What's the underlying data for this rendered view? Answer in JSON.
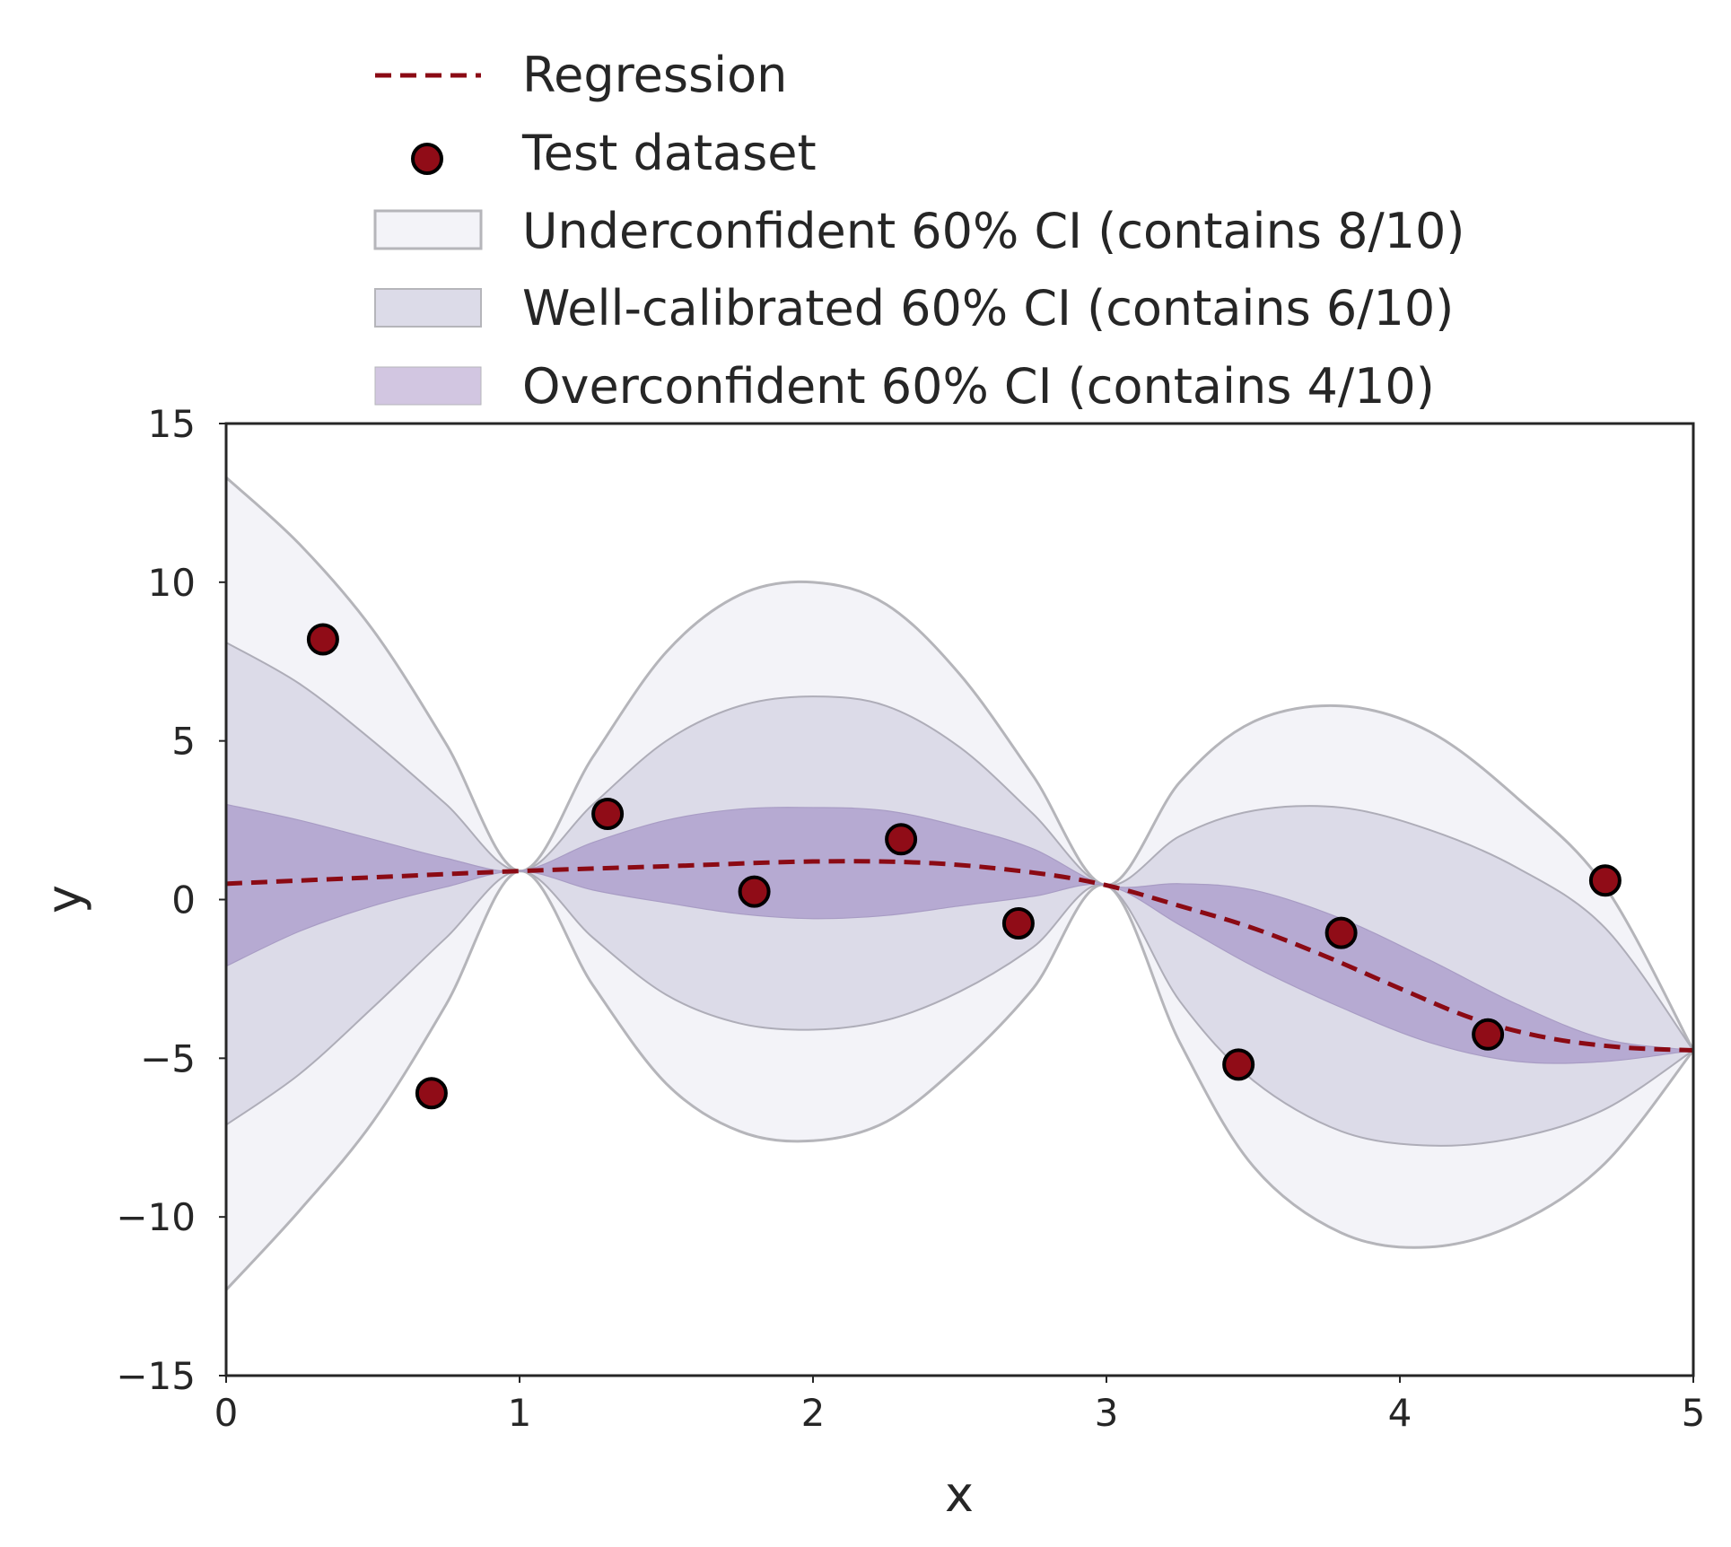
{
  "chart_data": {
    "type": "line",
    "xlabel": "x",
    "ylabel": "y",
    "xlim": [
      0,
      5
    ],
    "ylim": [
      -15,
      15
    ],
    "x_ticks": [
      0,
      1,
      2,
      3,
      4,
      5
    ],
    "y_ticks": [
      15,
      10,
      5,
      0,
      -5,
      -10,
      -15
    ],
    "x_tick_labels": [
      "0",
      "1",
      "2",
      "3",
      "4",
      "5"
    ],
    "y_tick_labels": [
      "15",
      "10",
      "5",
      "0",
      "−5",
      "−10",
      "−15"
    ],
    "grid": false,
    "legend_position": "top",
    "legend": [
      {
        "key": "regression",
        "label": "Regression"
      },
      {
        "key": "test",
        "label": "Test dataset"
      },
      {
        "key": "under",
        "label": "Underconfident 60% CI (contains 8/10)"
      },
      {
        "key": "well",
        "label": "Well-calibrated 60% CI (contains 6/10)"
      },
      {
        "key": "over",
        "label": "Overconfident 60% CI (contains 4/10)"
      }
    ],
    "colors": {
      "regression": "#8b0a14",
      "point_fill": "#900c17",
      "point_edge": "#000000",
      "under_fill": "#f3f3f8",
      "well_fill": "#dcdbe8",
      "over_fill": "#b6aad2",
      "band_edge": "#b5b5ba",
      "axis": "#262626"
    },
    "series": [
      {
        "name": "Regression",
        "x": [
          0,
          0.5,
          1,
          1.5,
          2,
          2.4,
          2.75,
          3,
          3.25,
          3.5,
          3.75,
          4,
          4.25,
          4.5,
          4.75,
          5
        ],
        "values": [
          0.5,
          0.7,
          0.9,
          1.05,
          1.2,
          1.15,
          0.85,
          0.45,
          -0.2,
          -0.9,
          -1.8,
          -2.8,
          -3.75,
          -4.35,
          -4.65,
          -4.75
        ]
      },
      {
        "name": "Underconfident 60% CI (contains 8/10)",
        "x": [
          0,
          0.25,
          0.5,
          0.75,
          1,
          1.25,
          1.5,
          1.75,
          2,
          2.25,
          2.5,
          2.75,
          3,
          3.25,
          3.5,
          3.8,
          4.1,
          4.4,
          4.7,
          5
        ],
        "upper": [
          13.3,
          11.2,
          8.5,
          4.9,
          0.9,
          4.5,
          7.8,
          9.6,
          10,
          9.3,
          7.1,
          3.9,
          0.45,
          3.7,
          5.6,
          6.1,
          5.3,
          3.2,
          0.4,
          -4.75
        ],
        "lower": [
          -12.3,
          -9.8,
          -7.0,
          -3.3,
          0.9,
          -2.7,
          -5.8,
          -7.3,
          -7.6,
          -7.0,
          -5.2,
          -2.8,
          0.45,
          -4.5,
          -8.4,
          -10.5,
          -10.95,
          -10.2,
          -8.3,
          -4.75
        ]
      },
      {
        "name": "Well-calibrated 60% CI (contains 6/10)",
        "x": [
          0,
          0.25,
          0.5,
          0.75,
          1,
          1.25,
          1.5,
          1.75,
          2,
          2.25,
          2.5,
          2.75,
          3,
          3.25,
          3.5,
          3.8,
          4.1,
          4.4,
          4.7,
          5
        ],
        "upper": [
          8.1,
          6.8,
          5.0,
          3.0,
          0.9,
          3.0,
          5.0,
          6.1,
          6.4,
          6.1,
          4.8,
          2.7,
          0.45,
          2.0,
          2.8,
          2.9,
          2.2,
          1.0,
          -0.9,
          -4.75
        ],
        "lower": [
          -7.1,
          -5.5,
          -3.4,
          -1.2,
          0.9,
          -1.2,
          -3.0,
          -3.9,
          -4.1,
          -3.8,
          -2.9,
          -1.5,
          0.45,
          -3.2,
          -5.7,
          -7.3,
          -7.75,
          -7.5,
          -6.6,
          -4.75
        ]
      },
      {
        "name": "Overconfident 60% CI (contains 4/10)",
        "x": [
          0,
          0.25,
          0.5,
          0.75,
          1,
          1.25,
          1.5,
          1.75,
          2,
          2.25,
          2.5,
          2.75,
          3,
          3.25,
          3.5,
          3.8,
          4.1,
          4.4,
          4.7,
          5
        ],
        "upper": [
          3.0,
          2.5,
          1.9,
          1.3,
          0.9,
          1.8,
          2.5,
          2.85,
          2.9,
          2.8,
          2.3,
          1.6,
          0.45,
          0.5,
          0.3,
          -0.6,
          -1.9,
          -3.3,
          -4.4,
          -4.75
        ],
        "lower": [
          -2.1,
          -1.0,
          -0.2,
          0.4,
          0.9,
          0.3,
          -0.1,
          -0.45,
          -0.6,
          -0.5,
          -0.2,
          0.1,
          0.45,
          -0.8,
          -2.1,
          -3.4,
          -4.5,
          -5.1,
          -5.1,
          -4.75
        ]
      }
    ],
    "test_points": [
      {
        "x": 0.33,
        "y": 8.2
      },
      {
        "x": 0.7,
        "y": -6.1
      },
      {
        "x": 1.3,
        "y": 2.7
      },
      {
        "x": 1.8,
        "y": 0.25
      },
      {
        "x": 2.3,
        "y": 1.9
      },
      {
        "x": 2.7,
        "y": -0.75
      },
      {
        "x": 3.45,
        "y": -5.2
      },
      {
        "x": 3.8,
        "y": -1.05
      },
      {
        "x": 4.3,
        "y": -4.25
      },
      {
        "x": 4.7,
        "y": 0.6
      }
    ]
  }
}
